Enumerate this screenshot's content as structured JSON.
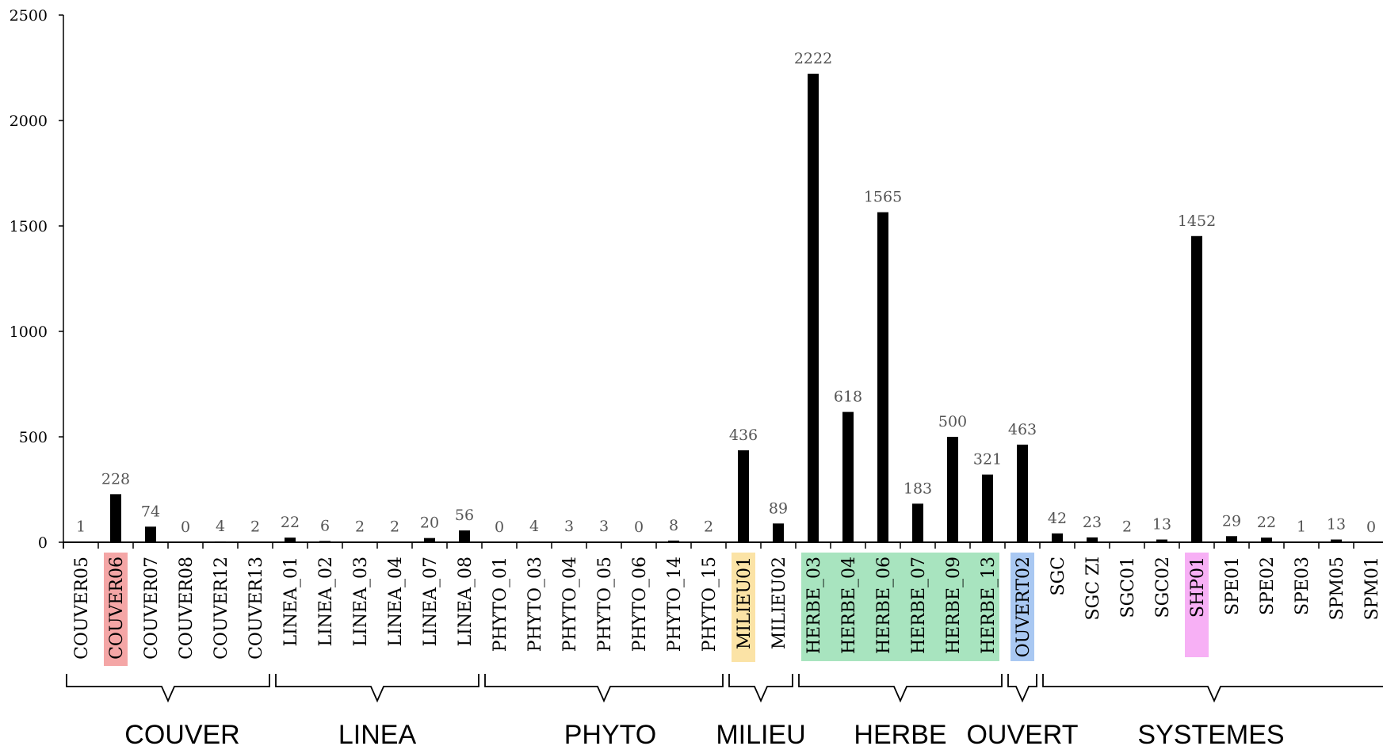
{
  "chart_data": {
    "type": "bar",
    "categories": [
      "COUVER05",
      "COUVER06",
      "COUVER07",
      "COUVER08",
      "COUVER12",
      "COUVER13",
      "LINEA_01",
      "LINEA_02",
      "LINEA_03",
      "LINEA_04",
      "LINEA_07",
      "LINEA_08",
      "PHYTO_01",
      "PHYTO_03",
      "PHYTO_04",
      "PHYTO_05",
      "PHYTO_06",
      "PHYTO_14",
      "PHYTO_15",
      "MILIEU01",
      "MILIEU02",
      "HERBE_03",
      "HERBE_04",
      "HERBE_06",
      "HERBE_07",
      "HERBE_09",
      "HERBE_13",
      "OUVERT02",
      "SGC",
      "SGC ZI",
      "SGC01",
      "SGC02",
      "SHP01",
      "SPE01",
      "SPE02",
      "SPE03",
      "SPM05",
      "SPM01"
    ],
    "values": [
      1,
      228,
      74,
      0,
      4,
      2,
      22,
      6,
      2,
      2,
      20,
      56,
      0,
      4,
      3,
      3,
      0,
      8,
      2,
      436,
      89,
      2222,
      618,
      1565,
      183,
      500,
      321,
      463,
      42,
      23,
      2,
      13,
      1452,
      29,
      22,
      1,
      13,
      0
    ],
    "ylim": [
      0,
      2500
    ],
    "y_ticks": [
      "0",
      "500",
      "1000",
      "1500",
      "2000",
      "2500"
    ],
    "bar_color": "#000000",
    "grid": false,
    "groups": [
      {
        "name": "COUVER",
        "start": 0,
        "end": 5
      },
      {
        "name": "LINEA",
        "start": 6,
        "end": 11
      },
      {
        "name": "PHYTO",
        "start": 12,
        "end": 18
      },
      {
        "name": "MILIEU",
        "start": 19,
        "end": 20
      },
      {
        "name": "HERBE",
        "start": 21,
        "end": 26
      },
      {
        "name": "OUVERT",
        "start": 27,
        "end": 27
      },
      {
        "name": "SYSTEMES",
        "start": 28,
        "end": 37
      }
    ],
    "highlights": [
      {
        "start": 1,
        "end": 1,
        "color": "#f4a6a6"
      },
      {
        "start": 19,
        "end": 19,
        "color": "#fbe3a6"
      },
      {
        "start": 21,
        "end": 26,
        "color": "#a8e4bf"
      },
      {
        "start": 27,
        "end": 27,
        "color": "#a9c8f2"
      },
      {
        "start": 32,
        "end": 32,
        "color": "#f7b0f5"
      }
    ]
  }
}
